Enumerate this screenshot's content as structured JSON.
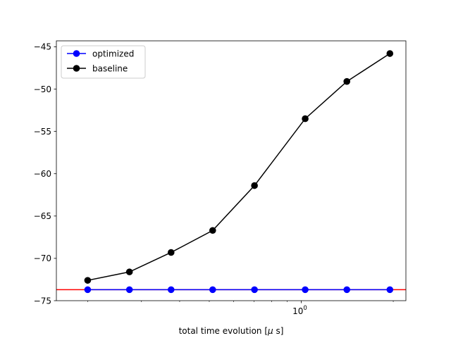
{
  "chart_data": {
    "type": "line",
    "xlabel": "total time evolution [",
    "xlabel_mu": "μ",
    "xlabel_tail": " s]",
    "xscale": "log",
    "xlim": [
      0.158,
      2.2
    ],
    "ylim": [
      -75,
      -44.3
    ],
    "yticks": [
      -75,
      -70,
      -65,
      -60,
      -55,
      -50,
      -45
    ],
    "ytick_labels": [
      "−75",
      "−70",
      "−65",
      "−60",
      "−55",
      "−50",
      "−45"
    ],
    "xticks_major": [
      1.0
    ],
    "xtick_major_labels": [
      "10",
      "0"
    ],
    "xticks_minor": [
      0.2,
      0.3,
      0.4,
      0.5,
      0.6,
      0.7,
      0.8,
      0.9,
      2.0
    ],
    "grid": false,
    "legend_position": "upper-left",
    "x": [
      0.2,
      0.274,
      0.375,
      0.513,
      0.703,
      1.03,
      1.41,
      1.95
    ],
    "series": [
      {
        "name": "optimized",
        "color": "#0000ff",
        "marker": "circle",
        "values": [
          -73.7,
          -73.7,
          -73.7,
          -73.7,
          -73.7,
          -73.7,
          -73.7,
          -73.7
        ]
      },
      {
        "name": "baseline",
        "color": "#000000",
        "marker": "circle",
        "values": [
          -72.6,
          -71.6,
          -69.3,
          -66.7,
          -61.4,
          -53.5,
          -49.1,
          -45.8
        ]
      }
    ],
    "reference_line": {
      "y": -73.7,
      "color": "#ff0000"
    }
  }
}
